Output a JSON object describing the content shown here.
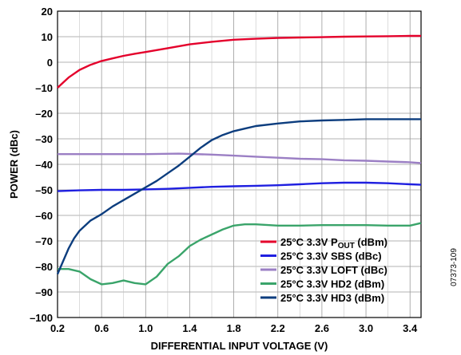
{
  "chart_data": {
    "type": "line",
    "xlabel": "DIFFERENTIAL INPUT VOLTAGE (V)",
    "ylabel": "POWER (dBc)",
    "xlim": [
      0.2,
      3.5
    ],
    "ylim": [
      -100,
      20
    ],
    "xticks": [
      0.2,
      0.6,
      1.0,
      1.4,
      1.8,
      2.2,
      2.6,
      3.0,
      3.4
    ],
    "xtick_labels": [
      "0.2",
      "0.6",
      "1.0",
      "1.4",
      "1.8",
      "2.2",
      "2.6",
      "3.0",
      "3.4"
    ],
    "yticks": [
      20,
      10,
      0,
      -10,
      -20,
      -30,
      -40,
      -50,
      -60,
      -70,
      -80,
      -90,
      -100
    ],
    "ytick_labels": [
      "20",
      "10",
      "0",
      "–10",
      "–20",
      "–30",
      "–40",
      "–50",
      "–60",
      "–70",
      "–80",
      "–90",
      "–100"
    ],
    "grid": true,
    "legend_position": "bottom-right",
    "figure_code": "07373-109",
    "series": [
      {
        "name": "25°C 3.3V POUT (dBm)",
        "legend_main": "25°C 3.3V P",
        "legend_sub": "OUT",
        "legend_tail": " (dBm)",
        "color": "#e4002b",
        "x": [
          0.2,
          0.3,
          0.4,
          0.5,
          0.6,
          0.7,
          0.8,
          0.9,
          1.0,
          1.2,
          1.4,
          1.6,
          1.8,
          2.0,
          2.2,
          2.4,
          2.6,
          2.8,
          3.0,
          3.2,
          3.4,
          3.5
        ],
        "y": [
          -10,
          -6,
          -3,
          -1,
          0.5,
          1.5,
          2.5,
          3.3,
          4,
          5.5,
          7,
          8,
          8.8,
          9.2,
          9.5,
          9.7,
          9.8,
          10,
          10.1,
          10.2,
          10.3,
          10.3
        ]
      },
      {
        "name": "25°C 3.3V SBS (dBc)",
        "legend_main": "25°C 3.3V SBS (dBc)",
        "color": "#1f1fe0",
        "x": [
          0.2,
          0.4,
          0.6,
          0.8,
          1.0,
          1.2,
          1.4,
          1.6,
          1.8,
          2.0,
          2.2,
          2.4,
          2.6,
          2.8,
          3.0,
          3.2,
          3.4,
          3.5
        ],
        "y": [
          -50.5,
          -50.2,
          -50,
          -50,
          -49.8,
          -49.6,
          -49.2,
          -48.8,
          -48.6,
          -48.4,
          -48.2,
          -47.8,
          -47.4,
          -47.2,
          -47.2,
          -47.4,
          -47.8,
          -48
        ]
      },
      {
        "name": "25°C 3.3V LOFT (dBc)",
        "legend_main": "25°C 3.3V LOFT (dBc)",
        "color": "#9b7fc4",
        "x": [
          0.2,
          0.6,
          1.0,
          1.3,
          1.6,
          1.8,
          2.0,
          2.2,
          2.4,
          2.6,
          2.8,
          3.0,
          3.2,
          3.4,
          3.5
        ],
        "y": [
          -36,
          -36,
          -36,
          -35.8,
          -36.2,
          -36.6,
          -37,
          -37.4,
          -37.8,
          -38,
          -38.4,
          -38.6,
          -38.9,
          -39.2,
          -39.5
        ]
      },
      {
        "name": "25°C 3.3V HD2 (dBm)",
        "legend_main": "25°C 3.3V HD2 (dBm)",
        "color": "#3aa46a",
        "x": [
          0.2,
          0.3,
          0.4,
          0.5,
          0.6,
          0.7,
          0.8,
          0.9,
          1.0,
          1.1,
          1.2,
          1.3,
          1.4,
          1.5,
          1.6,
          1.7,
          1.8,
          1.9,
          2.0,
          2.2,
          2.4,
          2.6,
          2.8,
          3.0,
          3.2,
          3.4,
          3.5
        ],
        "y": [
          -81,
          -81,
          -82,
          -85,
          -87,
          -86.5,
          -85.5,
          -86.5,
          -87,
          -84,
          -79,
          -76,
          -72,
          -69.5,
          -67.5,
          -65.5,
          -64,
          -63.5,
          -63.5,
          -64,
          -64,
          -63.8,
          -63.8,
          -63.8,
          -64,
          -64,
          -63
        ]
      },
      {
        "name": "25°C 3.3V HD3 (dBm)",
        "legend_main": "25°C 3.3V HD3 (dBm)",
        "color": "#0c3d7e",
        "x": [
          0.2,
          0.25,
          0.3,
          0.35,
          0.4,
          0.5,
          0.6,
          0.7,
          0.8,
          0.9,
          1.0,
          1.1,
          1.2,
          1.3,
          1.4,
          1.5,
          1.6,
          1.7,
          1.8,
          1.9,
          2.0,
          2.2,
          2.4,
          2.6,
          2.8,
          3.0,
          3.2,
          3.4,
          3.5
        ],
        "y": [
          -83,
          -78,
          -73,
          -69,
          -66,
          -62,
          -59.5,
          -56.5,
          -54,
          -51.5,
          -49,
          -46.5,
          -43.5,
          -40.5,
          -37,
          -33.5,
          -30.5,
          -28.5,
          -27,
          -26,
          -25,
          -24,
          -23.2,
          -22.8,
          -22.6,
          -22.3,
          -22.3,
          -22.3,
          -22.3
        ]
      }
    ]
  }
}
